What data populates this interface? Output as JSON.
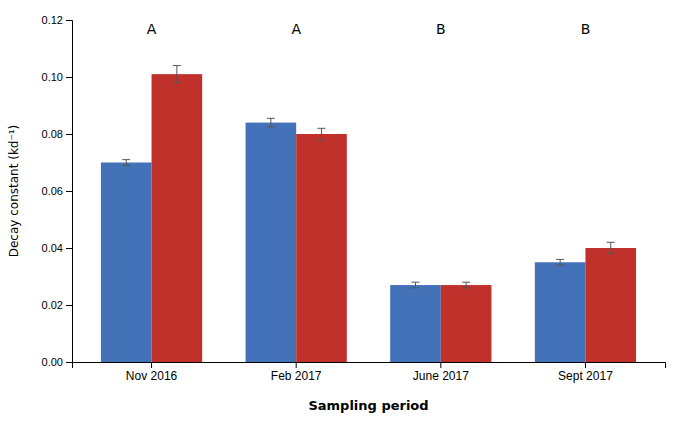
{
  "chart_data": {
    "type": "bar",
    "categories": [
      "Nov 2016",
      "Feb 2017",
      "June 2017",
      "Sept 2017"
    ],
    "series": [
      {
        "color": "#4472b8",
        "values": [
          0.07,
          0.084,
          0.027,
          0.035
        ],
        "errors": [
          0.001,
          0.0015,
          0.001,
          0.001
        ]
      },
      {
        "color": "#c0312b",
        "values": [
          0.101,
          0.08,
          0.027,
          0.04
        ],
        "errors": [
          0.003,
          0.002,
          0.001,
          0.002
        ]
      }
    ],
    "xlabel": "Sampling period",
    "ylabel": "Decay constant (kd⁻¹)",
    "ylim": [
      0,
      0.12
    ],
    "yticks": [
      {
        "value": 0,
        "label": "0.00"
      },
      0.02,
      0.04,
      0.06,
      0.08,
      {
        "value": 0.1,
        "label": "0.10"
      },
      0.12
    ],
    "annotations": [
      "A",
      "A",
      "B",
      "B"
    ],
    "grid": false
  }
}
